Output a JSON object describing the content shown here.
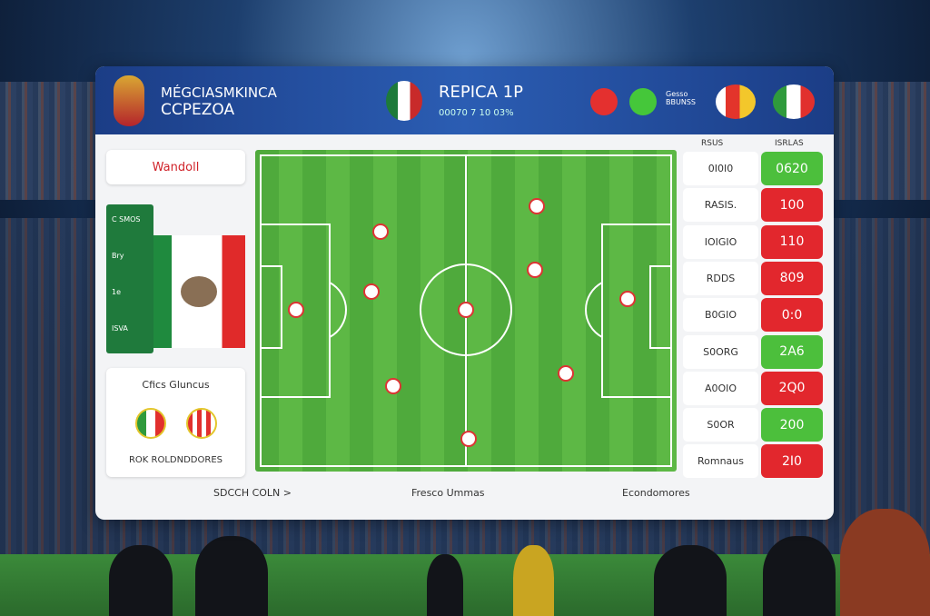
{
  "header": {
    "brand_line1": "MÉGCIASMKINCA",
    "brand_line2": "CCPEZOA",
    "match_title": "REPICA 1P",
    "match_sub": "00070 7 10 03%",
    "side_label": "Gesso\nBBUNSS"
  },
  "left": {
    "label": "Wandoll",
    "flag_lines": [
      "C SMOS",
      "Bry",
      "1e",
      "ISVA"
    ],
    "card_title": "Cfics Gluncus",
    "card_foot": "ROK ROLDNDDORES"
  },
  "stats": {
    "headers": [
      "RSUS",
      "ISRLAS"
    ],
    "rows": [
      {
        "label": "0I0I0",
        "value": "0620",
        "status": "green"
      },
      {
        "label": "RASIS.",
        "value": "100",
        "status": "red"
      },
      {
        "label": "IOIGIO",
        "value": "110",
        "status": "red"
      },
      {
        "label": "RDDS",
        "value": "809",
        "status": "red"
      },
      {
        "label": "B0GIO",
        "value": "0:0",
        "status": "red"
      },
      {
        "label": "S0ORG",
        "value": "2A6",
        "status": "green"
      },
      {
        "label": "A0OIO",
        "value": "2Q0",
        "status": "red"
      },
      {
        "label": "S0OR",
        "value": "200",
        "status": "green"
      },
      {
        "label": "Romnaus",
        "value": "2I0",
        "status": "red"
      }
    ]
  },
  "footer": {
    "left": "SDCCH COLN >",
    "center": "Fresco Ummas",
    "right": "Econdomores"
  }
}
